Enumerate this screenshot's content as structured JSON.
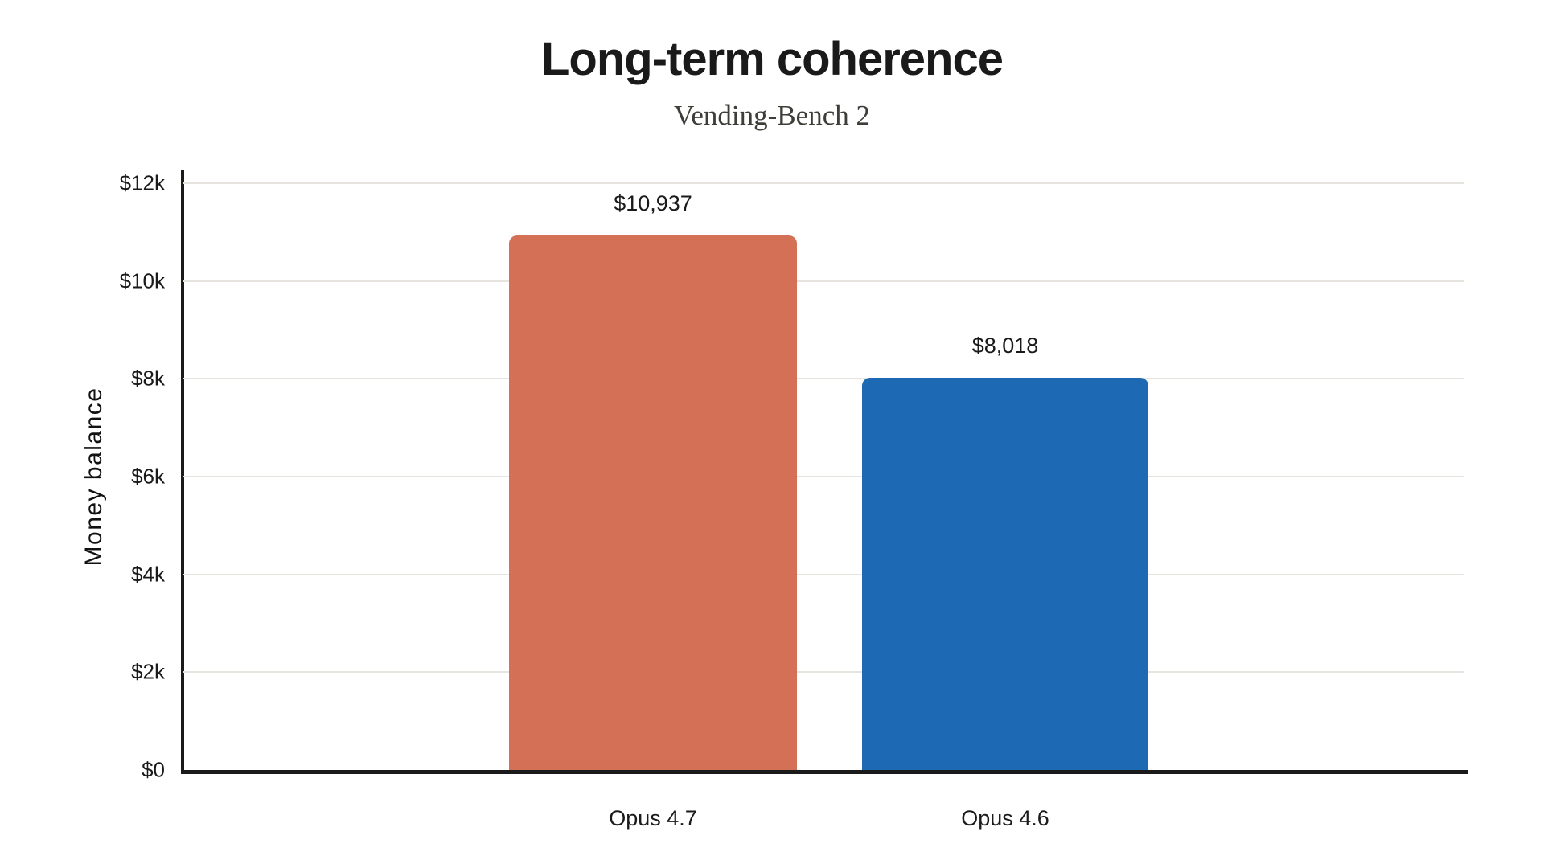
{
  "chart_data": {
    "type": "bar",
    "title": "Long-term coherence",
    "subtitle": "Vending-Bench 2",
    "ylabel": "Money balance",
    "xlabel": "",
    "categories": [
      "Opus 4.7",
      "Opus 4.6"
    ],
    "values": [
      10937,
      8018
    ],
    "value_labels": [
      "$10,937",
      "$8,018"
    ],
    "bar_colors": [
      "#d47056",
      "#1e69b3"
    ],
    "ylim": [
      0,
      12000
    ],
    "ytick_step": 2000,
    "ytick_labels": [
      "$0",
      "$2k",
      "$4k",
      "$6k",
      "$8k",
      "$10k",
      "$12k"
    ],
    "grid": true,
    "legend_position": "none",
    "background_color": "#ffffff",
    "gridline_color": "#e7e4df",
    "axis_color": "#1a1a1a",
    "subtitle_color": "#3e3e39"
  }
}
